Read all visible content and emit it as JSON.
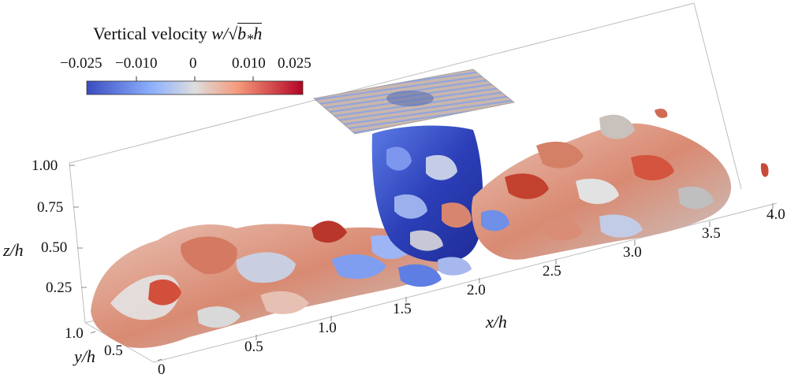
{
  "colorbar": {
    "title_text": "Vertical velocity",
    "title_math_left": "w/",
    "title_math_root": "b",
    "title_math_sub": "*",
    "title_math_tail": "h",
    "ticks": [
      "−0.025",
      "−0.010",
      "0",
      "0.010",
      "0.025"
    ],
    "tick_values": [
      -0.025,
      -0.01,
      0,
      0.01,
      0.025
    ],
    "colors": [
      "#3b4cc0",
      "#8db0fe",
      "#dddddd",
      "#f49a7b",
      "#b40426"
    ]
  },
  "axes": {
    "z_label": "z/h",
    "z_ticks": [
      "1.00",
      "0.75",
      "0.50",
      "0.25"
    ],
    "y_label": "y/h",
    "y_ticks": [
      "1.0",
      "0.5",
      "0"
    ],
    "x_label": "x/h",
    "x_ticks": [
      "0.5",
      "1.0",
      "1.5",
      "2.0",
      "2.5",
      "3.0",
      "3.5",
      "4.0"
    ]
  }
}
